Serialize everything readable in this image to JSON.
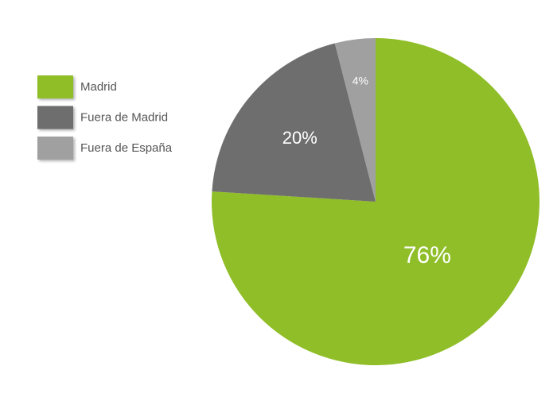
{
  "chart_data": {
    "type": "pie",
    "categories": [
      "Madrid",
      "Fuera de Madrid",
      "Fuera de España"
    ],
    "values": [
      76,
      20,
      4
    ],
    "value_labels": [
      "76%",
      "20%",
      "4%"
    ],
    "colors": [
      "#8fbe28",
      "#6e6e6e",
      "#a0a0a0"
    ]
  }
}
